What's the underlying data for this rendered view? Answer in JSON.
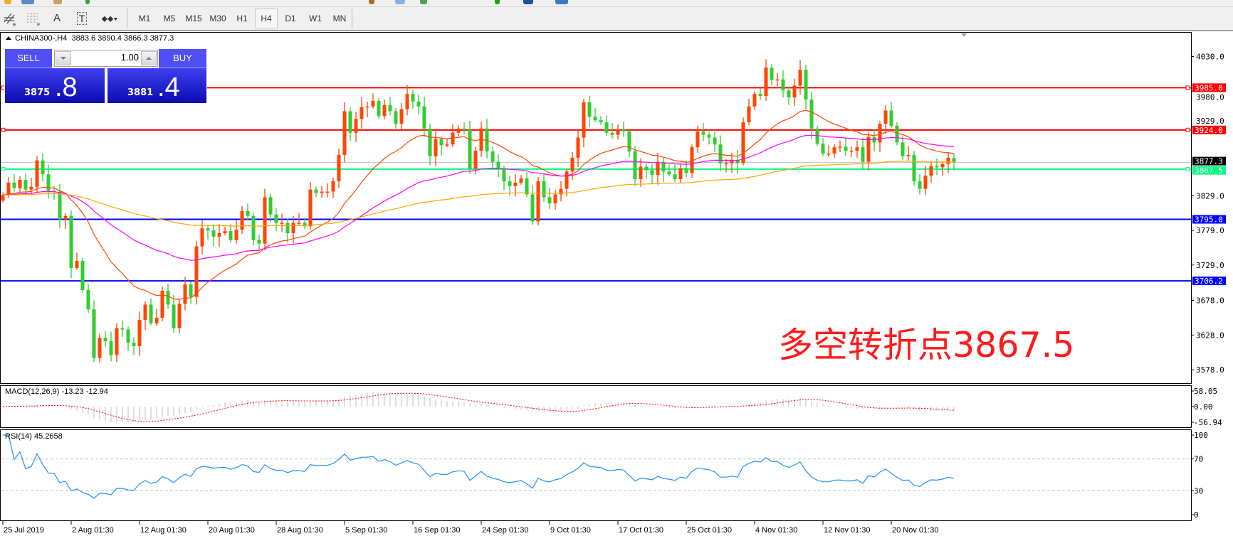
{
  "toolbar": {
    "tools": [
      {
        "name": "period-separators-icon",
        "label": "E"
      },
      {
        "name": "grid-icon",
        "label": "F"
      },
      {
        "name": "text-icon",
        "label": "A"
      },
      {
        "name": "text-label-icon",
        "label": "T"
      },
      {
        "name": "arrows-icon",
        "label": "▾"
      }
    ],
    "periods": [
      "M1",
      "M5",
      "M15",
      "M30",
      "H1",
      "H4",
      "D1",
      "W1",
      "MN"
    ],
    "active_period": "H4"
  },
  "header": {
    "symbol": "CHINA300-,H4",
    "ohlc": "3883.6 3890.4 3866.3 3877.3"
  },
  "trade_panel": {
    "sell_label": "SELL",
    "buy_label": "BUY",
    "lot": "1.00",
    "sell_price_small": "3875",
    "sell_price_big": ".8",
    "buy_price_small": "3881",
    "buy_price_big": ".4"
  },
  "annotation": "多空转折点3867.5",
  "indicators": {
    "macd_label": "MACD(12,26,9) -13.23 -12.94",
    "macd_axis": [
      "58.05",
      "0.00",
      "-56.94"
    ],
    "rsi_label": "RSI(14) 45.2658",
    "rsi_axis": [
      "100",
      "70",
      "30",
      "0"
    ]
  },
  "colors": {
    "bull": "#ff4500",
    "bear": "#32cd32",
    "resistance": "#ff0000",
    "pivot": "#00ff7f",
    "support": "#0000ff",
    "ma_fast": "#ff4500",
    "ma_mid": "#ff00ff",
    "ma_slow": "#ffa500",
    "rsi": "#1e90ff",
    "macd_signal": "#ff0000",
    "macd_hist": "#c0c0c0"
  },
  "chart_data": {
    "type": "candlestick",
    "symbol": "CHINA300-",
    "timeframe": "H4",
    "ylim": [
      3570,
      4075
    ],
    "y_ticks": [
      "4030.0",
      "3980.0",
      "3929.0",
      "3829.0",
      "3779.0",
      "3729.0",
      "3678.0",
      "3628.0",
      "3578.0"
    ],
    "current_price": "3877.3",
    "last_bar": {
      "open": 3883.6,
      "high": 3890.4,
      "low": 3866.3,
      "close": 3877.3
    },
    "levels": [
      {
        "value": "3985.0",
        "kind": "resistance"
      },
      {
        "value": "3924.0",
        "kind": "resistance"
      },
      {
        "value": "3867.5",
        "kind": "pivot"
      },
      {
        "value": "3795.0",
        "kind": "support"
      },
      {
        "value": "3706.2",
        "kind": "support"
      }
    ],
    "x_labels": [
      "25 Jul 2019",
      "2 Aug 01:30",
      "12 Aug 01:30",
      "20 Aug 01:30",
      "28 Aug 01:30",
      "5 Sep 01:30",
      "16 Sep 01:30",
      "24 Sep 01:30",
      "9 Oct 01:30",
      "17 Oct 01:30",
      "25 Oct 01:30",
      "4 Nov 01:30",
      "12 Nov 01:30",
      "20 Nov 01:30"
    ],
    "closes": [
      3830,
      3848,
      3840,
      3852,
      3838,
      3842,
      3880,
      3860,
      3836,
      3835,
      3795,
      3800,
      3725,
      3735,
      3693,
      3665,
      3595,
      3624,
      3619,
      3599,
      3638,
      3636,
      3617,
      3612,
      3650,
      3672,
      3645,
      3653,
      3692,
      3672,
      3638,
      3673,
      3701,
      3683,
      3756,
      3782,
      3779,
      3770,
      3775,
      3778,
      3765,
      3780,
      3807,
      3800,
      3765,
      3760,
      3827,
      3802,
      3790,
      3790,
      3775,
      3790,
      3790,
      3785,
      3838,
      3833,
      3835,
      3835,
      3850,
      3888,
      3951,
      3920,
      3940,
      3957,
      3958,
      3966,
      3944,
      3960,
      3951,
      3933,
      3954,
      3976,
      3965,
      3958,
      3926,
      3886,
      3911,
      3902,
      3903,
      3920,
      3926,
      3924,
      3868,
      3894,
      3926,
      3893,
      3878,
      3868,
      3850,
      3843,
      3848,
      3854,
      3831,
      3792,
      3850,
      3827,
      3818,
      3831,
      3839,
      3864,
      3884,
      3913,
      3964,
      3943,
      3938,
      3935,
      3920,
      3917,
      3925,
      3922,
      3893,
      3853,
      3871,
      3866,
      3859,
      3878,
      3864,
      3860,
      3853,
      3869,
      3862,
      3899,
      3922,
      3917,
      3913,
      3903,
      3876,
      3876,
      3881,
      3876,
      3935,
      3958,
      3976,
      3973,
      4014,
      3996,
      3997,
      3981,
      3971,
      3988,
      4011,
      3968,
      3926,
      3904,
      3890,
      3890,
      3899,
      3900,
      3894,
      3894,
      3899,
      3878,
      3914,
      3906,
      3933,
      3952,
      3930,
      3906,
      3886,
      3888,
      3850,
      3839,
      3858,
      3872,
      3870,
      3875,
      3884,
      3877.3
    ]
  }
}
